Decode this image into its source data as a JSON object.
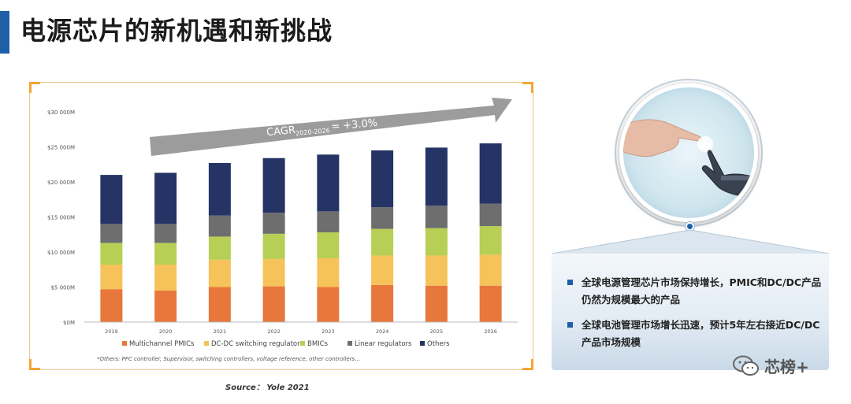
{
  "slide": {
    "title": "电源芯片的新机遇和新挑战",
    "source": "Source： Yole 2021",
    "watermark": "芯榜+"
  },
  "panel": {
    "bullets": [
      "全球电源管理芯片市场保持增长，PMIC和DC/DC产品仍然为规模最大的产品",
      "全球电池管理市场增长迅速，预计5年左右接近DC/DC产品市场规模"
    ]
  },
  "colors": {
    "title_accent": "#1f5fa8",
    "frame_corner": "#f3a536"
  },
  "chart_data": {
    "type": "bar",
    "stacked": true,
    "categories": [
      "2019",
      "2020",
      "2021",
      "2022",
      "2023",
      "2024",
      "2025",
      "2026"
    ],
    "ylim": [
      0,
      30000
    ],
    "yticks": [
      "$0M",
      "$5 000M",
      "$10 000M",
      "$15 000M",
      "$20 000M",
      "$25 000M",
      "$30 000M"
    ],
    "grid": false,
    "legend_position": "bottom",
    "series": [
      {
        "name": "Multichannel PMICs",
        "color": "#e8773b",
        "values": [
          4700,
          4500,
          5000,
          5100,
          5000,
          5300,
          5200,
          5200
        ]
      },
      {
        "name": "DC-DC switching regulators",
        "color": "#f6c35a",
        "values": [
          3500,
          3700,
          3900,
          3900,
          4100,
          4200,
          4300,
          4400
        ]
      },
      {
        "name": "BMICs",
        "color": "#b8cf56",
        "values": [
          3100,
          3100,
          3300,
          3600,
          3700,
          3800,
          3900,
          4100
        ]
      },
      {
        "name": "Linear regulators",
        "color": "#6e6e6e",
        "values": [
          2700,
          2700,
          3000,
          3000,
          3000,
          3100,
          3200,
          3200
        ]
      },
      {
        "name": "Others",
        "color": "#263465",
        "values": [
          7000,
          7300,
          7500,
          7800,
          8100,
          8100,
          8300,
          8600
        ]
      }
    ],
    "annotation": {
      "cagr_base": "CAGR",
      "cagr_sub": "2020-2026",
      "cagr_value": "= +3.0%"
    },
    "footnote": "*Others: PFC controller, Supervisor, switching controllers, voltage reference, other controllers…"
  }
}
